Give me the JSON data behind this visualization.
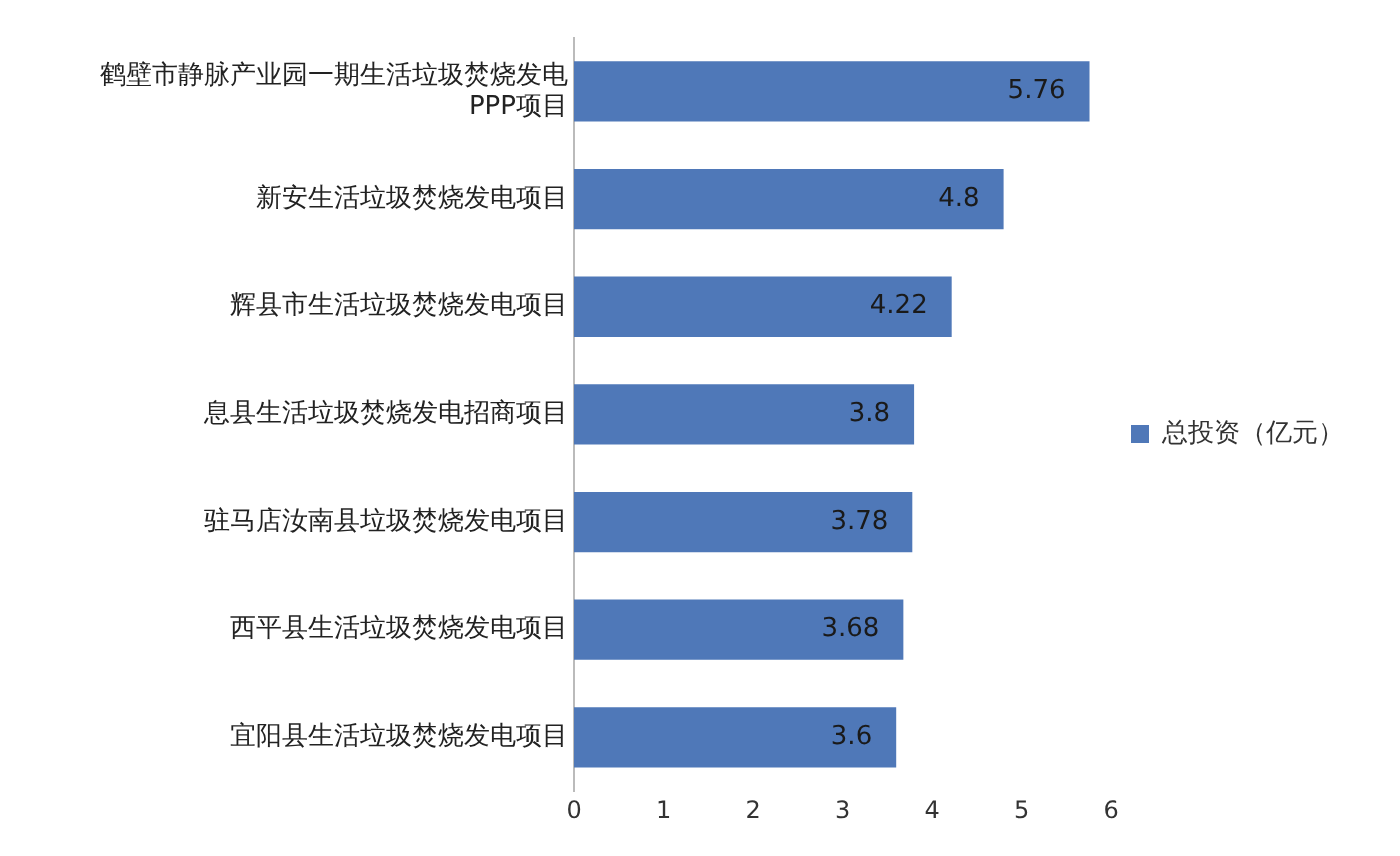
{
  "chart_data": {
    "type": "bar",
    "orientation": "horizontal",
    "categories": [
      "鹤壁市静脉产业园一期生活垃圾焚烧发电PPP项目",
      "新安生活垃圾焚烧发电项目",
      "辉县市生活垃圾焚烧发电项目",
      "息县生活垃圾焚烧发电招商项目",
      "驻马店汝南县垃圾焚烧发电项目",
      "西平县生活垃圾焚烧发电项目",
      "宜阳县生活垃圾焚烧发电项目"
    ],
    "series": [
      {
        "name": "总投资（亿元）",
        "color": "#4f78b8",
        "values": [
          5.76,
          4.8,
          4.22,
          3.8,
          3.78,
          3.68,
          3.6
        ]
      }
    ],
    "xlim": [
      0,
      6
    ],
    "xticks": [
      0,
      1,
      2,
      3,
      4,
      5,
      6
    ],
    "data_labels": true,
    "legend": "right",
    "grid": false
  }
}
